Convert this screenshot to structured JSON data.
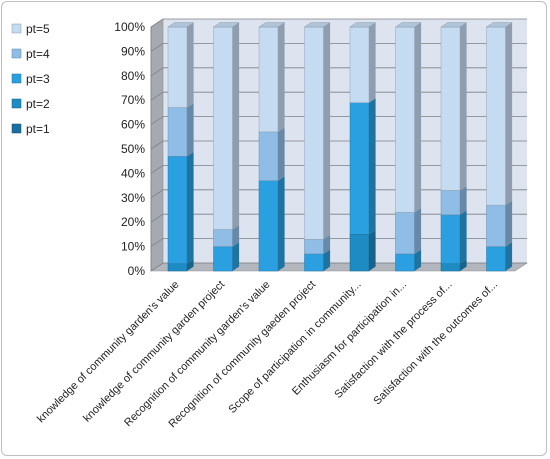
{
  "chart_data": {
    "type": "bar",
    "stacked": true,
    "percent": true,
    "three_d": true,
    "categories": [
      "knowledge of community garden's value",
      "knowledge of community garden project",
      "Recognition of community garden's value",
      "Recognition of community gaeden project",
      "Scope of participation in community...",
      "Enthusiasm for participation in...",
      "Satisfaction with the process of...",
      "Satisfaction with the outcomes of..."
    ],
    "series": [
      {
        "name": "pt=1",
        "color": "#1a6f9e",
        "values": [
          0,
          0,
          0,
          0,
          0,
          0,
          0,
          0
        ]
      },
      {
        "name": "pt=2",
        "color": "#1f8bc3",
        "values": [
          3,
          0,
          0,
          0,
          15,
          0,
          3,
          0
        ]
      },
      {
        "name": "pt=3",
        "color": "#2aa0e0",
        "values": [
          44,
          10,
          37,
          7,
          54,
          7,
          20,
          10
        ]
      },
      {
        "name": "pt=4",
        "color": "#8fbde6",
        "values": [
          20,
          7,
          20,
          6,
          0,
          17,
          10,
          17
        ]
      },
      {
        "name": "pt=5",
        "color": "#c5dbf2",
        "values": [
          33,
          83,
          43,
          87,
          31,
          76,
          67,
          73
        ]
      }
    ],
    "y_ticks": [
      "0%",
      "10%",
      "20%",
      "30%",
      "40%",
      "50%",
      "60%",
      "70%",
      "80%",
      "90%",
      "100%"
    ],
    "ylim": [
      0,
      100
    ],
    "legend_position": "left",
    "grid": true
  }
}
